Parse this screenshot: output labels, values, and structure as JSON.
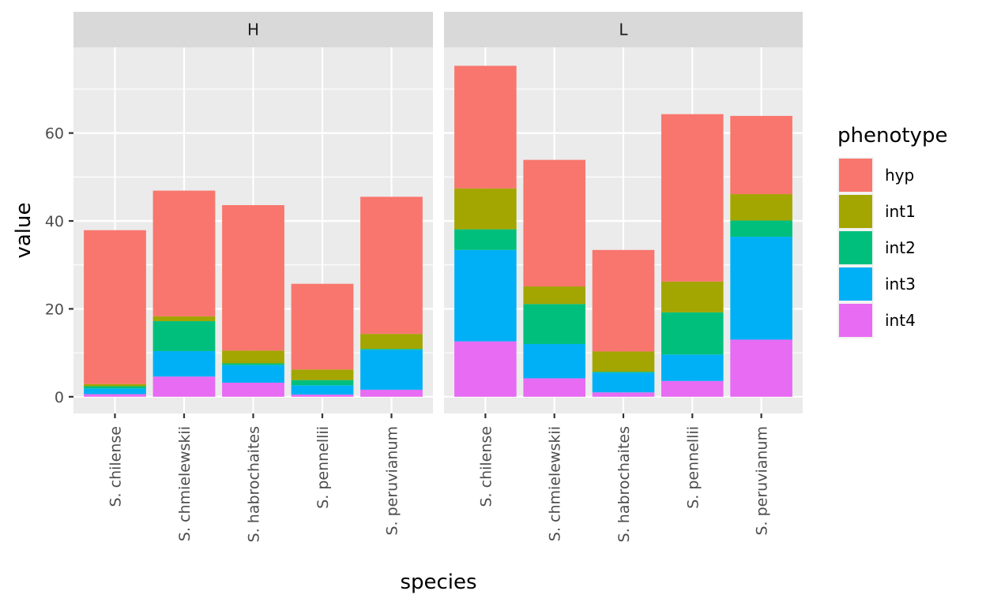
{
  "chart_data": {
    "type": "bar",
    "stacked": true,
    "facets": [
      "H",
      "L"
    ],
    "categories": [
      "S. chilense",
      "S. chmielewskii",
      "S. habrochaites",
      "S. pennellii",
      "S. peruvianum"
    ],
    "stack_order_bottom_to_top": [
      "int4",
      "int3",
      "int2",
      "int1",
      "hyp"
    ],
    "series": [
      {
        "name": "hyp",
        "color": "#F8766D",
        "values": {
          "H": [
            35.0,
            28.6,
            33.1,
            19.5,
            31.2
          ],
          "L": [
            27.9,
            28.8,
            23.1,
            38.1,
            17.8
          ]
        }
      },
      {
        "name": "int1",
        "color": "#A3A500",
        "values": {
          "H": [
            0.5,
            1.1,
            2.9,
            2.4,
            3.4
          ],
          "L": [
            9.3,
            4.0,
            4.6,
            7.0,
            6.0
          ]
        }
      },
      {
        "name": "int2",
        "color": "#00BF7D",
        "values": {
          "H": [
            0.5,
            6.8,
            0.4,
            1.2,
            0.2
          ],
          "L": [
            4.7,
            9.1,
            0.2,
            9.6,
            3.7
          ]
        }
      },
      {
        "name": "int3",
        "color": "#00B0F6",
        "values": {
          "H": [
            1.3,
            5.8,
            4.0,
            2.1,
            9.1
          ],
          "L": [
            20.8,
            7.8,
            4.5,
            6.0,
            23.4
          ]
        }
      },
      {
        "name": "int4",
        "color": "#E76BF3",
        "values": {
          "H": [
            0.6,
            4.6,
            3.2,
            0.5,
            1.6
          ],
          "L": [
            12.6,
            4.2,
            1.0,
            3.6,
            13.0
          ]
        }
      }
    ],
    "xlabel": "species",
    "ylabel": "value",
    "ylim": [
      -3.8,
      79.5
    ],
    "yticks": [
      0,
      20,
      40,
      60
    ],
    "legend": {
      "title": "phenotype",
      "position": "right",
      "items": [
        "hyp",
        "int1",
        "int2",
        "int3",
        "int4"
      ]
    },
    "grid": true
  }
}
